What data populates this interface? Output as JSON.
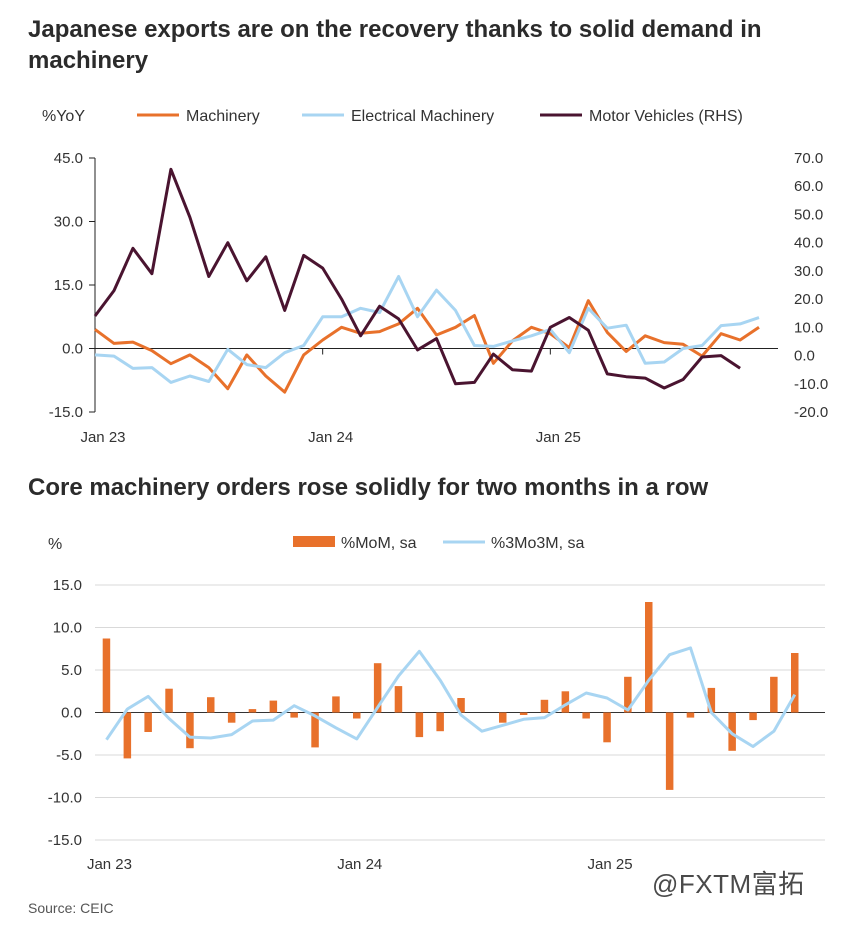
{
  "titles": {
    "chart1": "Japanese exports are on the recovery thanks to solid demand in machinery",
    "chart2": "Core machinery orders rose solidly for two months in a row"
  },
  "source": "Source: CEIC",
  "watermark": "@FXTM富拓",
  "chart_data": [
    {
      "type": "line",
      "ylabel_left": "%YoY",
      "ylim_left": [
        -15,
        45
      ],
      "yticks_left": [
        "45.0",
        "30.0",
        "15.0",
        "0.0",
        "-15.0"
      ],
      "ylim_right": [
        -20,
        70
      ],
      "yticks_right": [
        "70.0",
        "60.0",
        "50.0",
        "40.0",
        "30.0",
        "20.0",
        "10.0",
        "0.0",
        "-10.0",
        "-20.0"
      ],
      "xtick_labels": [
        "Jan 23",
        "Jan 24",
        "Jan 25"
      ],
      "legend_position": "top",
      "series": [
        {
          "name": "Machinery",
          "axis": "left",
          "color": "#E8712B",
          "values": [
            4.5,
            1.2,
            1.5,
            -0.5,
            -3.6,
            -1.5,
            -4.5,
            -9.5,
            -1.5,
            -6.5,
            -10.3,
            -1.5,
            2.0,
            5.0,
            3.6,
            4.0,
            5.8,
            9.5,
            3.2,
            5.0,
            7.8,
            -3.5,
            1.8,
            5.0,
            3.5,
            0.2,
            11.3,
            3.8,
            -0.7,
            3.0,
            1.4,
            1.0,
            -1.8,
            3.5,
            2.0,
            5.0
          ]
        },
        {
          "name": "Electrical Machinery",
          "axis": "left",
          "color": "#A8D5F2",
          "values": [
            -1.5,
            -1.8,
            -4.7,
            -4.5,
            -8.0,
            -6.5,
            -7.8,
            -0.2,
            -3.8,
            -4.5,
            -1.0,
            0.7,
            7.5,
            7.5,
            9.5,
            8.5,
            17.0,
            7.5,
            13.8,
            9.0,
            0.7,
            0.5,
            1.8,
            3.0,
            4.5,
            -1.0,
            9.5,
            4.8,
            5.5,
            -3.5,
            -3.2,
            0.0,
            0.7,
            5.4,
            5.8,
            7.3
          ]
        },
        {
          "name": "Motor Vehicles (RHS)",
          "axis": "right",
          "color": "#4A1430",
          "values": [
            14.0,
            23.0,
            38.0,
            29.0,
            66.0,
            49.0,
            28.0,
            40.0,
            26.5,
            35.0,
            16.0,
            35.5,
            31.0,
            20.0,
            7.0,
            17.5,
            13.0,
            2.0,
            6.0,
            -10.0,
            -9.5,
            0.5,
            -5.0,
            -5.5,
            10.0,
            13.5,
            9.0,
            -6.5,
            -7.5,
            -8.0,
            -11.5,
            -8.5,
            -0.5,
            0.0,
            -4.5
          ]
        }
      ]
    },
    {
      "type": "bar",
      "ylabel": "%",
      "ylim": [
        -15,
        15
      ],
      "yticks": [
        "15.0",
        "10.0",
        "5.0",
        "0.0",
        "-5.0",
        "-10.0",
        "-15.0"
      ],
      "xtick_labels": [
        "Jan 23",
        "Jan 24",
        "Jan 25"
      ],
      "legend_position": "top",
      "series": [
        {
          "name": "%MoM, sa",
          "render": "bar",
          "color": "#E8712B",
          "values": [
            8.7,
            -5.4,
            -2.3,
            2.8,
            -4.2,
            1.8,
            -1.2,
            0.4,
            1.4,
            -0.6,
            -4.1,
            1.9,
            -0.7,
            5.8,
            3.1,
            -2.9,
            -2.2,
            1.7,
            0.0,
            -1.2,
            -0.3,
            1.5,
            2.5,
            -0.7,
            -3.5,
            4.2,
            13.0,
            -9.1,
            -0.6,
            2.9,
            -4.5,
            -0.9,
            4.2,
            7.0
          ]
        },
        {
          "name": "%3Mo3M, sa",
          "render": "line",
          "color": "#A8D5F2",
          "values": [
            -3.2,
            0.4,
            1.9,
            -0.7,
            -2.9,
            -3.0,
            -2.6,
            -1.0,
            -0.9,
            0.8,
            -0.4,
            -1.8,
            -3.1,
            0.6,
            4.3,
            7.2,
            3.8,
            -0.3,
            -2.2,
            -1.5,
            -0.8,
            -0.6,
            0.9,
            2.3,
            1.7,
            0.3,
            3.8,
            6.8,
            7.6,
            0.0,
            -2.5,
            -4.0,
            -2.2,
            2.1
          ]
        }
      ]
    }
  ]
}
